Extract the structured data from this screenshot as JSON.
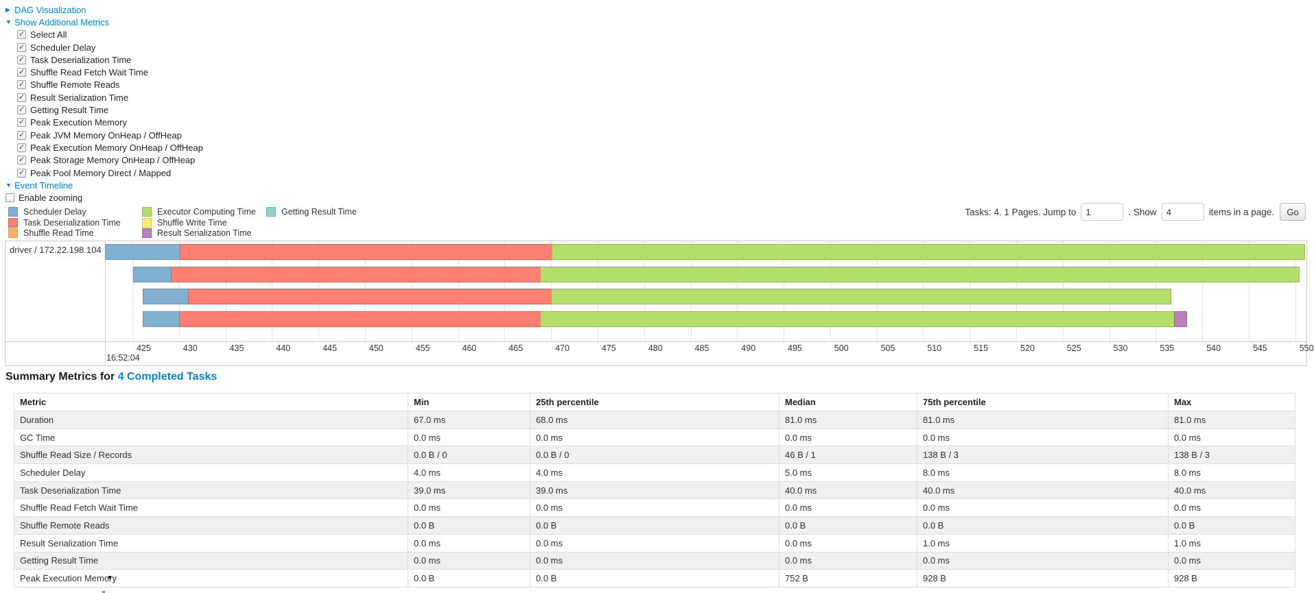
{
  "accent_color": "#0088cc",
  "controls": {
    "dag": {
      "label": "DAG Visualization",
      "arrow": "▶"
    },
    "metrics_toggle": {
      "label": "Show Additional Metrics",
      "arrow": "▼"
    },
    "metric_checkboxes": [
      {
        "label": "Select All",
        "checked": true
      },
      {
        "label": "Scheduler Delay",
        "checked": true
      },
      {
        "label": "Task Deserialization Time",
        "checked": true
      },
      {
        "label": "Shuffle Read Fetch Wait Time",
        "checked": true
      },
      {
        "label": "Shuffle Remote Reads",
        "checked": true
      },
      {
        "label": "Result Serialization Time",
        "checked": true
      },
      {
        "label": "Getting Result Time",
        "checked": true
      },
      {
        "label": "Peak Execution Memory",
        "checked": true
      },
      {
        "label": "Peak JVM Memory OnHeap / OffHeap",
        "checked": true
      },
      {
        "label": "Peak Execution Memory OnHeap / OffHeap",
        "checked": true
      },
      {
        "label": "Peak Storage Memory OnHeap / OffHeap",
        "checked": true
      },
      {
        "label": "Peak Pool Memory Direct / Mapped",
        "checked": true
      }
    ],
    "event_timeline": {
      "label": "Event Timeline",
      "arrow": "▼"
    },
    "enable_zooming": {
      "label": "Enable zooming",
      "checked": false
    }
  },
  "pagination": {
    "prefix": "Tasks: 4. 1 Pages. Jump to",
    "jump_value": "1",
    "mid": ". Show",
    "show_value": "4",
    "suffix": "items in a page.",
    "go_label": "Go"
  },
  "chart_data": {
    "type": "timeline-gantt",
    "group_label": "driver / 172.22.198.104",
    "axis": {
      "x_domain": [
        422.05,
        551.2
      ],
      "tick_start": 425,
      "tick_end": 550,
      "tick_step": 5,
      "start_time_label": "16:52:04",
      "unit": "ms within second"
    },
    "legend_columns": [
      [
        {
          "label": "Scheduler Delay",
          "color": "#80B1D3",
          "stroke": "#6B94B0"
        },
        {
          "label": "Task Deserialization Time",
          "color": "#FB8072",
          "stroke": "#D26358"
        },
        {
          "label": "Shuffle Read Time",
          "color": "#FDB462",
          "stroke": "#D99A4B"
        }
      ],
      [
        {
          "label": "Executor Computing Time",
          "color": "#B3DE69",
          "stroke": "#92BA4E"
        },
        {
          "label": "Shuffle Write Time",
          "color": "#FFED6F",
          "stroke": "#DCC95A"
        },
        {
          "label": "Result Serialization Time",
          "color": "#BC80BD",
          "stroke": "#9A5FA0"
        }
      ],
      [
        {
          "label": "Getting Result Time",
          "color": "#8DD3C7",
          "stroke": "#6FB5A8"
        }
      ]
    ],
    "segment_colors": {
      "scheduler_delay": {
        "fill": "#80B1D3",
        "stroke": "#6B94B0"
      },
      "task_deserialization": {
        "fill": "#FB8072",
        "stroke": "#D26358"
      },
      "executor_computing": {
        "fill": "#B3DE69",
        "stroke": "#92BA4E"
      },
      "result_serialization": {
        "fill": "#BC80BD",
        "stroke": "#9A5FA0"
      }
    },
    "tasks": [
      {
        "start_ms": 422.05,
        "segments": [
          [
            "scheduler_delay",
            8.0
          ],
          [
            "task_deserialization",
            40.0
          ],
          [
            "executor_computing",
            80.9
          ]
        ]
      },
      {
        "start_ms": 425.1,
        "segments": [
          [
            "scheduler_delay",
            4.0
          ],
          [
            "task_deserialization",
            39.7
          ],
          [
            "executor_computing",
            81.6
          ]
        ]
      },
      {
        "start_ms": 426.1,
        "segments": [
          [
            "scheduler_delay",
            4.9
          ],
          [
            "task_deserialization",
            39.0
          ],
          [
            "executor_computing",
            66.6
          ]
        ]
      },
      {
        "start_ms": 426.1,
        "segments": [
          [
            "scheduler_delay",
            3.9
          ],
          [
            "task_deserialization",
            38.8
          ],
          [
            "executor_computing",
            68.2
          ],
          [
            "result_serialization",
            1.3
          ]
        ]
      }
    ]
  },
  "summary": {
    "title_prefix": "Summary Metrics for",
    "title_link": "4 Completed Tasks",
    "columns": [
      "Metric",
      "Min",
      "25th percentile",
      "Median",
      "75th percentile",
      "Max"
    ],
    "rows": [
      {
        "metric": "Duration",
        "values": [
          "67.0 ms",
          "68.0 ms",
          "81.0 ms",
          "81.0 ms",
          "81.0 ms"
        ]
      },
      {
        "metric": "GC Time",
        "values": [
          "0.0 ms",
          "0.0 ms",
          "0.0 ms",
          "0.0 ms",
          "0.0 ms"
        ]
      },
      {
        "metric": "Shuffle Read Size / Records",
        "values": [
          "0.0 B / 0",
          "0.0 B / 0",
          "46 B / 1",
          "138 B / 3",
          "138 B / 3"
        ]
      },
      {
        "metric": "Scheduler Delay",
        "values": [
          "4.0 ms",
          "4.0 ms",
          "5.0 ms",
          "8.0 ms",
          "8.0 ms"
        ]
      },
      {
        "metric": "Task Deserialization Time",
        "values": [
          "39.0 ms",
          "39.0 ms",
          "40.0 ms",
          "40.0 ms",
          "40.0 ms"
        ]
      },
      {
        "metric": "Shuffle Read Fetch Wait Time",
        "values": [
          "0.0 ms",
          "0.0 ms",
          "0.0 ms",
          "0.0 ms",
          "0.0 ms"
        ]
      },
      {
        "metric": "Shuffle Remote Reads",
        "values": [
          "0.0 B",
          "0.0 B",
          "0.0 B",
          "0.0 B",
          "0.0 B"
        ]
      },
      {
        "metric": "Result Serialization Time",
        "values": [
          "0.0 ms",
          "0.0 ms",
          "0.0 ms",
          "1.0 ms",
          "1.0 ms"
        ]
      },
      {
        "metric": "Getting Result Time",
        "values": [
          "0.0 ms",
          "0.0 ms",
          "0.0 ms",
          "0.0 ms",
          "0.0 ms"
        ]
      },
      {
        "metric": "Peak Execution Memory",
        "values": [
          "0.0 B",
          "0.0 B",
          "752 B",
          "928 B",
          "928 B"
        ]
      }
    ]
  }
}
